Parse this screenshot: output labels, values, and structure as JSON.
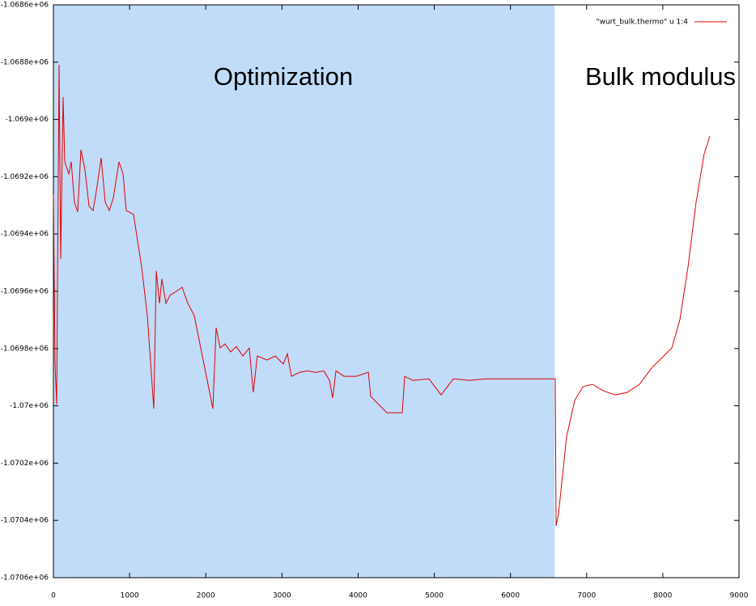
{
  "chart_data": {
    "type": "line",
    "legend_position": "top-right",
    "annotations": [
      "Optimization",
      "Bulk modulus"
    ],
    "shaded_region": {
      "x": [
        0,
        6580
      ],
      "color": "#c0dcf8"
    },
    "xlim": [
      0,
      9000
    ],
    "xticks": [
      0,
      1000,
      2000,
      3000,
      4000,
      5000,
      6000,
      7000,
      8000,
      9000
    ],
    "ylim": [
      -1070600,
      -1068600
    ],
    "yticks": [
      {
        "value": -1068600,
        "label": "-1.0686e+06"
      },
      {
        "value": -1068800,
        "label": "-1.0688e+06"
      },
      {
        "value": -1069000,
        "label": "-1.069e+06"
      },
      {
        "value": -1069200,
        "label": "-1.0692e+06"
      },
      {
        "value": -1069400,
        "label": "-1.0694e+06"
      },
      {
        "value": -1069600,
        "label": "-1.0696e+06"
      },
      {
        "value": -1069800,
        "label": "-1.0698e+06"
      },
      {
        "value": -1070000,
        "label": "-1.07e+06"
      },
      {
        "value": -1070200,
        "label": "-1.0702e+06"
      },
      {
        "value": -1070400,
        "label": "-1.0704e+06"
      },
      {
        "value": -1070600,
        "label": "-1.0706e+06"
      }
    ],
    "series": [
      {
        "name": "\"wurt_bulk.thermo\" u 1:4",
        "color": "#e00000",
        "x": [
          0,
          21,
          43,
          74,
          96,
          128,
          149,
          202,
          234,
          276,
          319,
          361,
          414,
          468,
          521,
          574,
          627,
          680,
          733,
          786,
          861,
          914,
          956,
          1052,
          1158,
          1233,
          1318,
          1350,
          1392,
          1424,
          1477,
          1530,
          1615,
          1690,
          1764,
          1849,
          2008,
          2093,
          2136,
          2189,
          2253,
          2327,
          2401,
          2486,
          2571,
          2624,
          2677,
          2805,
          2911,
          3018,
          3071,
          3124,
          3230,
          3336,
          3443,
          3549,
          3624,
          3666,
          3709,
          3815,
          3974,
          4134,
          4165,
          4378,
          4580,
          4612,
          4718,
          4930,
          5090,
          5250,
          5462,
          5674,
          5993,
          6312,
          6588,
          6599,
          6630,
          6737,
          6843,
          6950,
          7077,
          7215,
          7374,
          7534,
          7693,
          7852,
          8012,
          8118,
          8224,
          8331,
          8437,
          8543,
          8617
        ],
        "values": [
          -1069261,
          -1069854,
          -1069995,
          -1068809,
          -1069487,
          -1068922,
          -1069148,
          -1069190,
          -1069148,
          -1069289,
          -1069323,
          -1069106,
          -1069176,
          -1069303,
          -1069318,
          -1069233,
          -1069134,
          -1069289,
          -1069318,
          -1069275,
          -1069148,
          -1069190,
          -1069318,
          -1069332,
          -1069515,
          -1069685,
          -1070010,
          -1069529,
          -1069642,
          -1069557,
          -1069642,
          -1069614,
          -1069600,
          -1069586,
          -1069642,
          -1069685,
          -1069897,
          -1070010,
          -1069727,
          -1069798,
          -1069784,
          -1069812,
          -1069793,
          -1069826,
          -1069798,
          -1069953,
          -1069826,
          -1069840,
          -1069826,
          -1069854,
          -1069818,
          -1069897,
          -1069883,
          -1069878,
          -1069883,
          -1069878,
          -1069911,
          -1069973,
          -1069878,
          -1069897,
          -1069897,
          -1069883,
          -1069967,
          -1070024,
          -1070024,
          -1069897,
          -1069911,
          -1069906,
          -1069962,
          -1069906,
          -1069911,
          -1069906,
          -1069906,
          -1069906,
          -1069906,
          -1070419,
          -1070377,
          -1070108,
          -1069981,
          -1069933,
          -1069925,
          -1069947,
          -1069962,
          -1069953,
          -1069925,
          -1069868,
          -1069826,
          -1069798,
          -1069699,
          -1069515,
          -1069289,
          -1069120,
          -1069058
        ]
      }
    ]
  }
}
